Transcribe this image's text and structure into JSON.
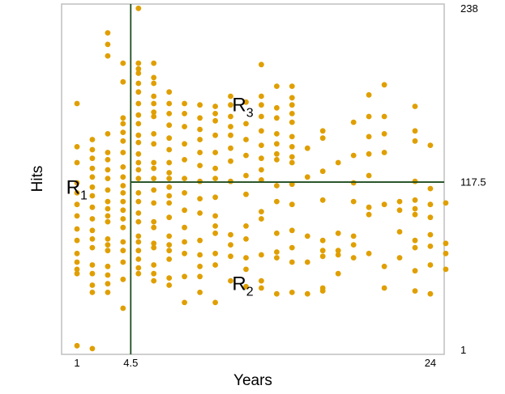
{
  "chart_data": {
    "type": "scatter",
    "title": "",
    "xlabel": "Years",
    "ylabel": "Hits",
    "xlim": [
      0,
      24.9
    ],
    "ylim": [
      -2,
      241
    ],
    "x_ticks": [
      {
        "value": 1,
        "label": "1"
      },
      {
        "value": 4.5,
        "label": "4.5"
      },
      {
        "value": 24,
        "label": "24"
      }
    ],
    "y_ticks": [
      {
        "value": 1,
        "label": "1"
      },
      {
        "value": 117.5,
        "label": "117.5"
      },
      {
        "value": 238,
        "label": "238"
      }
    ],
    "split_lines": {
      "vertical_x": 4.5,
      "horizontal_y": 117.5,
      "horizontal_from_x": 4.5,
      "color": "#1f4d1f"
    },
    "regions": [
      {
        "letter": "R",
        "sub": "1",
        "x": 0.3,
        "y": 114
      },
      {
        "letter": "R",
        "sub": "2",
        "x": 11.1,
        "y": 47
      },
      {
        "letter": "R",
        "sub": "3",
        "x": 11.1,
        "y": 171
      }
    ],
    "point_color": "#e09f00",
    "points": [
      [
        1,
        4
      ],
      [
        1,
        54
      ],
      [
        1,
        57
      ],
      [
        1,
        62
      ],
      [
        1,
        68
      ],
      [
        1,
        77
      ],
      [
        1,
        85
      ],
      [
        1,
        94
      ],
      [
        1,
        102
      ],
      [
        1,
        110
      ],
      [
        1,
        117
      ],
      [
        1,
        131
      ],
      [
        1,
        142
      ],
      [
        1,
        172
      ],
      [
        2,
        2
      ],
      [
        2,
        41
      ],
      [
        2,
        46
      ],
      [
        2,
        54
      ],
      [
        2,
        60
      ],
      [
        2,
        72
      ],
      [
        2,
        78
      ],
      [
        2,
        84
      ],
      [
        2,
        92
      ],
      [
        2,
        100
      ],
      [
        2,
        108
      ],
      [
        2,
        114
      ],
      [
        2,
        121
      ],
      [
        2,
        127
      ],
      [
        2,
        134
      ],
      [
        2,
        140
      ],
      [
        2,
        147
      ],
      [
        3,
        41
      ],
      [
        3,
        47
      ],
      [
        3,
        53
      ],
      [
        3,
        59
      ],
      [
        3,
        70
      ],
      [
        3,
        74
      ],
      [
        3,
        78
      ],
      [
        3,
        90
      ],
      [
        3,
        94
      ],
      [
        3,
        99
      ],
      [
        3,
        104
      ],
      [
        3,
        112
      ],
      [
        3,
        120
      ],
      [
        3,
        126
      ],
      [
        3,
        133
      ],
      [
        3,
        138
      ],
      [
        3,
        151
      ],
      [
        3,
        205
      ],
      [
        3,
        213
      ],
      [
        3,
        221
      ],
      [
        4,
        30
      ],
      [
        4,
        50
      ],
      [
        4,
        62
      ],
      [
        4,
        70
      ],
      [
        4,
        76
      ],
      [
        4,
        86
      ],
      [
        4,
        92
      ],
      [
        4,
        98
      ],
      [
        4,
        104
      ],
      [
        4,
        110
      ],
      [
        4,
        115
      ],
      [
        4,
        121
      ],
      [
        4,
        128
      ],
      [
        4,
        138
      ],
      [
        4,
        146
      ],
      [
        4,
        152
      ],
      [
        4,
        158
      ],
      [
        4,
        162
      ],
      [
        4,
        187
      ],
      [
        4,
        200
      ],
      [
        5,
        54
      ],
      [
        5,
        58
      ],
      [
        5,
        64
      ],
      [
        5,
        70
      ],
      [
        5,
        76
      ],
      [
        5,
        80
      ],
      [
        5,
        90
      ],
      [
        5,
        96
      ],
      [
        5,
        104
      ],
      [
        5,
        110
      ],
      [
        5,
        120
      ],
      [
        5,
        126
      ],
      [
        5,
        131
      ],
      [
        5,
        137
      ],
      [
        5,
        145
      ],
      [
        5,
        150
      ],
      [
        5,
        158
      ],
      [
        5,
        164
      ],
      [
        5,
        172
      ],
      [
        5,
        180
      ],
      [
        5,
        186
      ],
      [
        5,
        193
      ],
      [
        5,
        196
      ],
      [
        5,
        200
      ],
      [
        5,
        238
      ],
      [
        6,
        49
      ],
      [
        6,
        54
      ],
      [
        6,
        60
      ],
      [
        6,
        72
      ],
      [
        6,
        75
      ],
      [
        6,
        86
      ],
      [
        6,
        90
      ],
      [
        6,
        103
      ],
      [
        6,
        112
      ],
      [
        6,
        120
      ],
      [
        6,
        127
      ],
      [
        6,
        131
      ],
      [
        6,
        144
      ],
      [
        6,
        151
      ],
      [
        6,
        163
      ],
      [
        6,
        166
      ],
      [
        6,
        172
      ],
      [
        6,
        177
      ],
      [
        6,
        186
      ],
      [
        6,
        190
      ],
      [
        6,
        200
      ],
      [
        7,
        46
      ],
      [
        7,
        51
      ],
      [
        7,
        64
      ],
      [
        7,
        70
      ],
      [
        7,
        74
      ],
      [
        7,
        80
      ],
      [
        7,
        93
      ],
      [
        7,
        103
      ],
      [
        7,
        108
      ],
      [
        7,
        114
      ],
      [
        7,
        120
      ],
      [
        7,
        124
      ],
      [
        7,
        131
      ],
      [
        7,
        140
      ],
      [
        7,
        148
      ],
      [
        7,
        157
      ],
      [
        7,
        165
      ],
      [
        7,
        172
      ],
      [
        7,
        180
      ],
      [
        8,
        34
      ],
      [
        8,
        52
      ],
      [
        8,
        68
      ],
      [
        8,
        76
      ],
      [
        8,
        86
      ],
      [
        8,
        98
      ],
      [
        8,
        110
      ],
      [
        8,
        120
      ],
      [
        8,
        133
      ],
      [
        8,
        144
      ],
      [
        8,
        156
      ],
      [
        8,
        165
      ],
      [
        8,
        172
      ],
      [
        9,
        41
      ],
      [
        9,
        52
      ],
      [
        9,
        59
      ],
      [
        9,
        67
      ],
      [
        9,
        77
      ],
      [
        9,
        96
      ],
      [
        9,
        106
      ],
      [
        9,
        118
      ],
      [
        9,
        129
      ],
      [
        9,
        138
      ],
      [
        9,
        147
      ],
      [
        9,
        154
      ],
      [
        9,
        162
      ],
      [
        9,
        171
      ],
      [
        10,
        34
      ],
      [
        10,
        60
      ],
      [
        10,
        68
      ],
      [
        10,
        82
      ],
      [
        10,
        87
      ],
      [
        10,
        94
      ],
      [
        10,
        107
      ],
      [
        10,
        120
      ],
      [
        10,
        127
      ],
      [
        10,
        138
      ],
      [
        10,
        150
      ],
      [
        10,
        160
      ],
      [
        10,
        165
      ],
      [
        10,
        170
      ],
      [
        11,
        49
      ],
      [
        11,
        66
      ],
      [
        11,
        74
      ],
      [
        11,
        81
      ],
      [
        11,
        118
      ],
      [
        11,
        132
      ],
      [
        11,
        141
      ],
      [
        11,
        150
      ],
      [
        11,
        156
      ],
      [
        11,
        163
      ],
      [
        11,
        171
      ],
      [
        11,
        177
      ],
      [
        12,
        45
      ],
      [
        12,
        57
      ],
      [
        12,
        65
      ],
      [
        12,
        78
      ],
      [
        12,
        87
      ],
      [
        12,
        109
      ],
      [
        12,
        122
      ],
      [
        12,
        136
      ],
      [
        12,
        147
      ],
      [
        12,
        158
      ],
      [
        12,
        173
      ],
      [
        13,
        44
      ],
      [
        13,
        49
      ],
      [
        13,
        67
      ],
      [
        13,
        92
      ],
      [
        13,
        97
      ],
      [
        13,
        119
      ],
      [
        13,
        126
      ],
      [
        13,
        134
      ],
      [
        13,
        143
      ],
      [
        13,
        153
      ],
      [
        13,
        163
      ],
      [
        13,
        171
      ],
      [
        13,
        177
      ],
      [
        13,
        199
      ],
      [
        14,
        40
      ],
      [
        14,
        65
      ],
      [
        14,
        69
      ],
      [
        14,
        82
      ],
      [
        14,
        104
      ],
      [
        14,
        115
      ],
      [
        14,
        133
      ],
      [
        14,
        137
      ],
      [
        14,
        144
      ],
      [
        14,
        151
      ],
      [
        14,
        162
      ],
      [
        14,
        169
      ],
      [
        14,
        184
      ],
      [
        15,
        41
      ],
      [
        15,
        62
      ],
      [
        15,
        72
      ],
      [
        15,
        84
      ],
      [
        15,
        102
      ],
      [
        15,
        116
      ],
      [
        15,
        131
      ],
      [
        15,
        135
      ],
      [
        15,
        142
      ],
      [
        15,
        149
      ],
      [
        15,
        159
      ],
      [
        15,
        165
      ],
      [
        15,
        171
      ],
      [
        15,
        176
      ],
      [
        15,
        184
      ],
      [
        16,
        40
      ],
      [
        16,
        62
      ],
      [
        16,
        80
      ],
      [
        16,
        121
      ],
      [
        16,
        141
      ],
      [
        17,
        42
      ],
      [
        17,
        44
      ],
      [
        17,
        66
      ],
      [
        17,
        70
      ],
      [
        17,
        77
      ],
      [
        17,
        105
      ],
      [
        17,
        125
      ],
      [
        17,
        148
      ],
      [
        17,
        153
      ],
      [
        18,
        54
      ],
      [
        18,
        67
      ],
      [
        18,
        70
      ],
      [
        18,
        82
      ],
      [
        18,
        131
      ],
      [
        19,
        65
      ],
      [
        19,
        74
      ],
      [
        19,
        80
      ],
      [
        19,
        104
      ],
      [
        19,
        117
      ],
      [
        19,
        136
      ],
      [
        19,
        159
      ],
      [
        20,
        68
      ],
      [
        20,
        95
      ],
      [
        20,
        100
      ],
      [
        20,
        122
      ],
      [
        20,
        137
      ],
      [
        20,
        149
      ],
      [
        20,
        163
      ],
      [
        20,
        178
      ],
      [
        21,
        44
      ],
      [
        21,
        59
      ],
      [
        21,
        102
      ],
      [
        21,
        138
      ],
      [
        21,
        151
      ],
      [
        21,
        163
      ],
      [
        21,
        185
      ],
      [
        22,
        65
      ],
      [
        22,
        83
      ],
      [
        22,
        98
      ],
      [
        22,
        104
      ],
      [
        23,
        42
      ],
      [
        23,
        56
      ],
      [
        23,
        72
      ],
      [
        23,
        77
      ],
      [
        23,
        95
      ],
      [
        23,
        99
      ],
      [
        23,
        105
      ],
      [
        23,
        118
      ],
      [
        23,
        146
      ],
      [
        23,
        153
      ],
      [
        23,
        170
      ],
      [
        24,
        40
      ],
      [
        24,
        60
      ],
      [
        24,
        73
      ],
      [
        24,
        81
      ],
      [
        24,
        93
      ],
      [
        24,
        102
      ],
      [
        24,
        113
      ],
      [
        24,
        143
      ],
      [
        25,
        57
      ],
      [
        25,
        68
      ],
      [
        25,
        75
      ],
      [
        25,
        103
      ]
    ]
  }
}
